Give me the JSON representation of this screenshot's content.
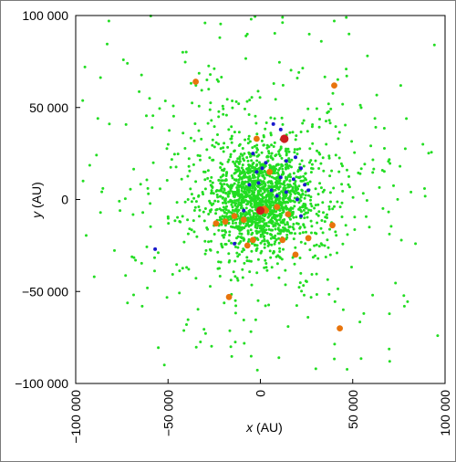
{
  "chart_data": {
    "type": "scatter",
    "title": "",
    "xlabel_var": "x",
    "xlabel_unit": "(AU)",
    "ylabel_var": "y",
    "ylabel_unit": "(AU)",
    "xlim": [
      -100000,
      100000
    ],
    "ylim": [
      -100000,
      100000
    ],
    "x_tick_values": [
      -100000,
      -50000,
      0,
      50000,
      100000
    ],
    "x_tick_labels": [
      "−100 000",
      "−50 000",
      "0",
      "50 000",
      "100 000"
    ],
    "y_tick_values": [
      100000,
      50000,
      0,
      -50000,
      -100000
    ],
    "y_tick_labels": [
      "100 000",
      "50 000",
      "0",
      "−50 000",
      "−100 000"
    ],
    "grid": false,
    "legend": "none",
    "colors": {
      "green": "#22dd22",
      "blue": "#1a1acc",
      "orange": "#e8740c",
      "red": "#cc1f1f"
    },
    "series": [
      {
        "color": "green",
        "note_count": 2000,
        "distribution_center": [
          0,
          0
        ],
        "distribution_core_sigma": 14000,
        "distribution_halo_sigma": 40000,
        "values": [
          [
            -82000,
            97000
          ],
          [
            -30000,
            96000
          ],
          [
            -5000,
            98000
          ],
          [
            12000,
            99000
          ],
          [
            40000,
            97000
          ],
          [
            -95000,
            72000
          ],
          [
            -72000,
            74000
          ],
          [
            -42000,
            80000
          ],
          [
            -22000,
            88000
          ],
          [
            33000,
            86000
          ],
          [
            48000,
            90000
          ],
          [
            58000,
            78000
          ],
          [
            76000,
            62000
          ],
          [
            -88000,
            44000
          ],
          [
            -60000,
            55000
          ],
          [
            -28000,
            60000
          ],
          [
            20000,
            66000
          ],
          [
            62000,
            44000
          ],
          [
            88000,
            30000
          ],
          [
            -96000,
            10000
          ],
          [
            -76000,
            -6000
          ],
          [
            84000,
            -24000
          ],
          [
            -90000,
            -42000
          ],
          [
            -64000,
            -58000
          ],
          [
            -40000,
            -68000
          ],
          [
            -16000,
            -80000
          ],
          [
            10000,
            -86000
          ],
          [
            30000,
            -92000
          ],
          [
            56000,
            -62000
          ],
          [
            78000,
            -58000
          ],
          [
            96000,
            -74000
          ],
          [
            -52000,
            -90000
          ],
          [
            70000,
            -88000
          ],
          [
            -58000,
            20000
          ],
          [
            54000,
            14000
          ]
        ]
      },
      {
        "color": "orange",
        "values": [
          [
            -35000,
            64000
          ],
          [
            40000,
            62000
          ],
          [
            -2000,
            33000
          ],
          [
            5000,
            15000
          ],
          [
            -14000,
            -9000
          ],
          [
            -19000,
            -12000
          ],
          [
            -9000,
            -11000
          ],
          [
            3000,
            -6000
          ],
          [
            9000,
            -4000
          ],
          [
            15000,
            -8000
          ],
          [
            2000,
            -5000
          ],
          [
            -7000,
            -25000
          ],
          [
            -4000,
            -22000
          ],
          [
            19000,
            -30000
          ],
          [
            26000,
            -21000
          ],
          [
            39000,
            -14000
          ],
          [
            -17000,
            -53000
          ],
          [
            43000,
            -70000
          ],
          [
            12000,
            -22000
          ],
          [
            -24000,
            -13000
          ]
        ]
      },
      {
        "color": "blue",
        "values": [
          [
            7000,
            41000
          ],
          [
            11000,
            38000
          ],
          [
            -4000,
            25000
          ],
          [
            3000,
            20000
          ],
          [
            1000,
            17000
          ],
          [
            14000,
            21000
          ],
          [
            19000,
            23000
          ],
          [
            22000,
            17000
          ],
          [
            18000,
            11000
          ],
          [
            24000,
            8000
          ],
          [
            26000,
            5000
          ],
          [
            14000,
            4000
          ],
          [
            9000,
            2000
          ],
          [
            -1000,
            9000
          ],
          [
            -6000,
            8000
          ],
          [
            20000,
            0
          ],
          [
            22000,
            -9000
          ],
          [
            -9000,
            -6000
          ],
          [
            -14000,
            -24000
          ],
          [
            -57000,
            -27000
          ],
          [
            6000,
            5000
          ],
          [
            11000,
            12000
          ],
          [
            -2000,
            15000
          ]
        ]
      },
      {
        "color": "red",
        "values": [
          [
            13000,
            33000
          ],
          [
            0,
            -6000
          ]
        ]
      }
    ]
  }
}
